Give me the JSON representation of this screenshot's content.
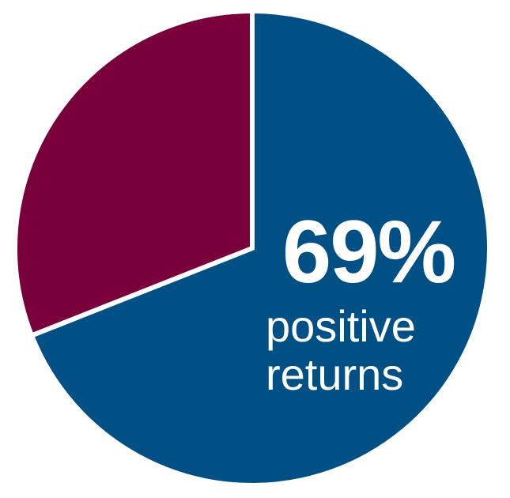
{
  "chart_data": {
    "type": "pie",
    "slices": [
      {
        "value": 69,
        "color": "#005086",
        "label": "69%",
        "caption_lines": [
          "positive",
          "returns"
        ]
      },
      {
        "value": 31,
        "color": "#7a003c"
      }
    ]
  }
}
